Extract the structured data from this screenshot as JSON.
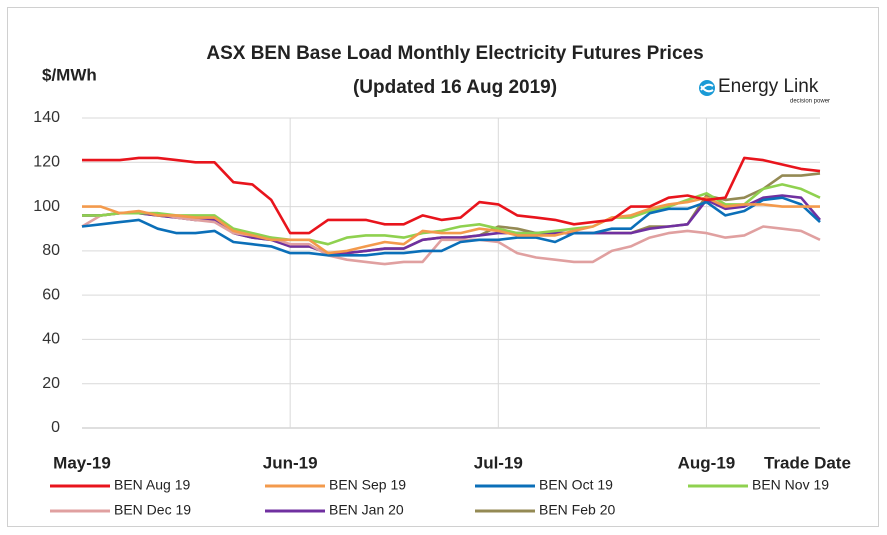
{
  "chart_data": {
    "type": "line",
    "title": "ASX BEN Base Load Monthly Electricity Futures Prices",
    "subtitle": "(Updated 16 Aug 2019)",
    "y_label": "$/MWh",
    "x_label": "Trade Date",
    "logo_text": "Energy Link",
    "logo_tagline": "decision power",
    "categories": [
      "May-19",
      null,
      null,
      null,
      null,
      null,
      null,
      null,
      null,
      null,
      null,
      "Jun-19",
      null,
      null,
      null,
      null,
      null,
      null,
      null,
      null,
      null,
      null,
      "Jul-19",
      null,
      null,
      null,
      null,
      null,
      null,
      null,
      null,
      null,
      null,
      "Aug-19",
      null,
      null,
      null,
      null,
      null,
      null
    ],
    "ylim": [
      0,
      140
    ],
    "yticks": [
      0,
      20,
      40,
      60,
      80,
      100,
      120,
      140
    ],
    "grid": true,
    "series": [
      {
        "name": "BEN Aug 19",
        "color": "#e8141c",
        "values": [
          121,
          121,
          121,
          122,
          122,
          121,
          120,
          120,
          111,
          110,
          103,
          88,
          88,
          94,
          94,
          94,
          92,
          92,
          96,
          94,
          95,
          102,
          101,
          96,
          95,
          94,
          92,
          93,
          94,
          100,
          100,
          104,
          105,
          103,
          104,
          122,
          121,
          119,
          117,
          116
        ]
      },
      {
        "name": "BEN Sep 19",
        "color": "#f39a4c",
        "values": [
          100,
          100,
          97,
          98,
          96,
          96,
          95,
          95,
          89,
          87,
          85,
          85,
          85,
          79,
          80,
          82,
          84,
          83,
          89,
          88,
          88,
          90,
          89,
          87,
          87,
          87,
          89,
          91,
          95,
          96,
          99,
          101,
          102,
          104,
          100,
          101,
          101,
          100,
          100,
          100
        ]
      },
      {
        "name": "BEN Oct 19",
        "color": "#0b6fb8",
        "values": [
          91,
          92,
          93,
          94,
          90,
          88,
          88,
          89,
          84,
          83,
          82,
          79,
          79,
          78,
          78,
          78,
          79,
          79,
          80,
          80,
          84,
          85,
          85,
          86,
          86,
          84,
          88,
          88,
          90,
          90,
          97,
          99,
          99,
          102,
          96,
          98,
          103,
          104,
          101,
          93
        ]
      },
      {
        "name": "BEN Nov 19",
        "color": "#8fd14f",
        "values": [
          96,
          96,
          97,
          97,
          97,
          96,
          96,
          96,
          90,
          88,
          86,
          85,
          85,
          83,
          86,
          87,
          87,
          86,
          88,
          89,
          91,
          92,
          90,
          88,
          88,
          89,
          90,
          91,
          95,
          95,
          98,
          100,
          103,
          106,
          101,
          101,
          108,
          110,
          108,
          104
        ]
      },
      {
        "name": "BEN Dec 19",
        "color": "#e0a0a0",
        "values": [
          91,
          96,
          97,
          97,
          97,
          95,
          94,
          93,
          88,
          87,
          86,
          83,
          83,
          78,
          76,
          75,
          74,
          75,
          75,
          85,
          85,
          85,
          84,
          79,
          77,
          76,
          75,
          75,
          80,
          82,
          86,
          88,
          89,
          88,
          86,
          87,
          91,
          90,
          89,
          85
        ]
      },
      {
        "name": "BEN Jan 20",
        "color": "#7030a0",
        "values": [
          96,
          96,
          97,
          97,
          96,
          95,
          94,
          94,
          88,
          86,
          85,
          82,
          82,
          79,
          79,
          80,
          81,
          81,
          85,
          86,
          86,
          87,
          88,
          88,
          88,
          88,
          88,
          88,
          88,
          88,
          90,
          91,
          92,
          103,
          99,
          100,
          104,
          105,
          104,
          94
        ]
      },
      {
        "name": "BEN Feb 20",
        "color": "#948a54",
        "values": [
          96,
          96,
          97,
          97,
          96,
          95,
          94,
          94,
          88,
          86,
          85,
          82,
          82,
          79,
          79,
          80,
          81,
          81,
          85,
          86,
          86,
          87,
          91,
          90,
          88,
          88,
          88,
          88,
          88,
          88,
          91,
          91,
          92,
          105,
          103,
          104,
          108,
          114,
          114,
          115
        ]
      }
    ]
  }
}
